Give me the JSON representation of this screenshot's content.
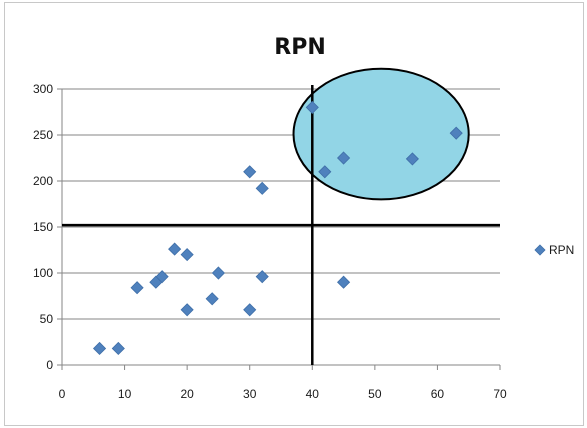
{
  "chart_data": {
    "type": "scatter",
    "title": "RPN",
    "xlabel": "",
    "ylabel": "",
    "xlim": [
      0,
      70
    ],
    "ylim": [
      0,
      300
    ],
    "x_ticks": [
      0,
      10,
      20,
      30,
      40,
      50,
      60,
      70
    ],
    "y_ticks": [
      0,
      50,
      100,
      150,
      200,
      250,
      300
    ],
    "grid": "horizontal",
    "legend_position": "right",
    "series": [
      {
        "name": "RPN",
        "color": "#4f81bd",
        "marker": "diamond",
        "points": [
          {
            "x": 6,
            "y": 18
          },
          {
            "x": 9,
            "y": 18
          },
          {
            "x": 12,
            "y": 84
          },
          {
            "x": 15,
            "y": 90
          },
          {
            "x": 16,
            "y": 96
          },
          {
            "x": 18,
            "y": 126
          },
          {
            "x": 20,
            "y": 120
          },
          {
            "x": 20,
            "y": 60
          },
          {
            "x": 24,
            "y": 72
          },
          {
            "x": 25,
            "y": 100
          },
          {
            "x": 30,
            "y": 210
          },
          {
            "x": 30,
            "y": 60
          },
          {
            "x": 32,
            "y": 192
          },
          {
            "x": 32,
            "y": 96
          },
          {
            "x": 40,
            "y": 280
          },
          {
            "x": 42,
            "y": 210
          },
          {
            "x": 45,
            "y": 225
          },
          {
            "x": 45,
            "y": 90
          },
          {
            "x": 56,
            "y": 224
          },
          {
            "x": 63,
            "y": 252
          }
        ]
      }
    ],
    "reference_lines": [
      {
        "orientation": "horizontal",
        "value": 152,
        "color": "#000000"
      },
      {
        "orientation": "vertical",
        "value": 40,
        "color": "#000000"
      }
    ],
    "highlight_ellipse": {
      "center": {
        "x": 51,
        "y": 251
      },
      "radius_x": 14,
      "radius_y": 71,
      "fill": "#92d5e6",
      "stroke": "#000000"
    }
  }
}
